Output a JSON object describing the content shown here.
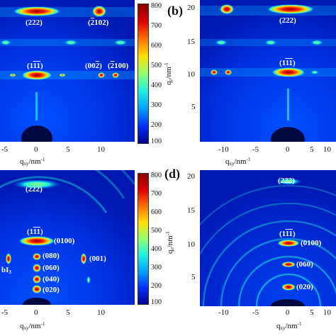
{
  "panel_b_label": "(b)",
  "panel_d_label": "(d)",
  "colorbar_ticks_top": [
    "800",
    "700",
    "600",
    "500",
    "400",
    "300",
    "200",
    "100"
  ],
  "colorbar_ticks_bottom": [
    "800",
    "700",
    "600",
    "500",
    "400",
    "300",
    "200",
    "100"
  ],
  "colormap": [
    "#00008f",
    "#0030ff",
    "#00a0ff",
    "#20f0e0",
    "#90ff70",
    "#ffe000",
    "#ff7000",
    "#e00000",
    "#8a0000"
  ],
  "panel_a": {
    "x_ticks": [
      "-5",
      "0",
      "5",
      "10"
    ],
    "x_label": "q",
    "x_label_sub": "xy",
    "x_label_unit": "/nm",
    "x_label_sup": "-1",
    "peaks": [
      {
        "text": "(222)",
        "overline": ""
      },
      {
        "text": "(",
        "overline": "2",
        "rest": "102)"
      },
      {
        "text": "(1",
        "overline": "11",
        "rest": ")"
      },
      {
        "text": "(00",
        "overline": "2",
        "rest": ")"
      },
      {
        "text": "(",
        "overline": "2",
        "rest": "100)"
      }
    ]
  },
  "panel_b": {
    "x_ticks": [
      "-10",
      "-5",
      "0",
      "5",
      "10"
    ],
    "y_ticks": [
      "20",
      "15",
      "10",
      "5"
    ],
    "x_label": "q",
    "x_label_sub": "xy",
    "x_label_unit": "/nm",
    "x_label_sup": "-1",
    "y_label": "q",
    "y_label_sub": "z",
    "y_label_unit": "/nm",
    "y_label_sup": "-1",
    "peaks": [
      {
        "text": "(222)"
      },
      {
        "text": "(1",
        "overline": "11",
        "rest": ")"
      }
    ]
  },
  "panel_c": {
    "x_ticks": [
      "-5",
      "0",
      "5",
      "10"
    ],
    "x_label": "q",
    "x_label_sub": "xy",
    "x_label_unit": "/nm",
    "x_label_sup": "-1",
    "side_label": "bI",
    "side_label_sub": "3",
    "peaks": [
      {
        "text": "(222)"
      },
      {
        "text": "(1",
        "overline": "11",
        "rest": ")"
      },
      {
        "text": "(0100)"
      },
      {
        "text": "(080)"
      },
      {
        "text": "(060)"
      },
      {
        "text": "(040)"
      },
      {
        "text": "(020)"
      },
      {
        "text": "(001)"
      }
    ]
  },
  "panel_d": {
    "x_ticks": [
      "-10",
      "-5",
      "0",
      "5",
      "10"
    ],
    "y_ticks": [
      "20",
      "15",
      "10",
      "5"
    ],
    "x_label": "q",
    "x_label_sub": "xy",
    "x_label_unit": "/nm",
    "x_label_sup": "-1",
    "y_label": "q",
    "y_label_sub": "z",
    "y_label_unit": "/nm",
    "y_label_sup": "-1",
    "peaks": [
      {
        "text": "(222)"
      },
      {
        "text": "(1",
        "overline": "11",
        "rest": ")"
      },
      {
        "text": "(0100)"
      },
      {
        "text": "(060)"
      },
      {
        "text": "(020)"
      }
    ]
  },
  "chart_data": [
    {
      "type": "heatmap",
      "panel": "a",
      "x_ticks": [
        -5,
        0,
        5,
        10
      ],
      "colorbar_range": [
        100,
        800
      ],
      "xlabel": "q_xy/nm^-1",
      "peaks": [
        "(222)",
        "(-2102)",
        "(1-1-1)",
        "(00-2)",
        "(-2100)"
      ]
    },
    {
      "type": "heatmap",
      "panel": "b",
      "x_ticks": [
        -10,
        -5,
        0,
        5,
        10
      ],
      "y_ticks": [
        5,
        10,
        15,
        20
      ],
      "xlabel": "q_xy/nm^-1",
      "ylabel": "q_z/nm^-1",
      "peaks": [
        "(222)",
        "(1-1-1)"
      ]
    },
    {
      "type": "heatmap",
      "panel": "c",
      "x_ticks": [
        -5,
        0,
        5,
        10
      ],
      "colorbar_range": [
        100,
        800
      ],
      "xlabel": "q_xy/nm^-1",
      "peaks": [
        "(222)",
        "(1-1-1)",
        "(0100)",
        "(080)",
        "(060)",
        "(040)",
        "(020)",
        "(001)"
      ]
    },
    {
      "type": "heatmap",
      "panel": "d",
      "x_ticks": [
        -10,
        -5,
        0,
        5,
        10
      ],
      "y_ticks": [
        5,
        10,
        15,
        20
      ],
      "xlabel": "q_xy/nm^-1",
      "ylabel": "q_z/nm^-1",
      "peaks": [
        "(222)",
        "(1-1-1)",
        "(0100)",
        "(060)",
        "(020)"
      ]
    }
  ]
}
